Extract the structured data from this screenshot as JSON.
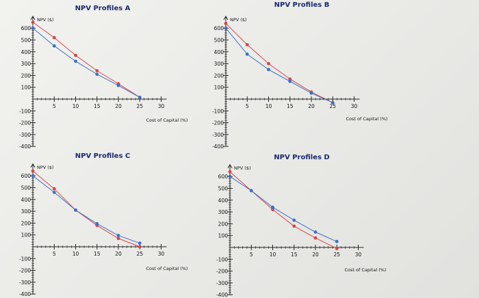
{
  "colors": {
    "series_a": "#d64545",
    "series_b": "#3d6fc9",
    "axis": "#222222",
    "title": "#1a2a6e"
  },
  "chart_data": [
    {
      "type": "line",
      "title": "NPV Profiles A",
      "ylabel": "NPV ($)",
      "xlabel": "Cost of Capital (%)",
      "xlim": [
        0,
        30
      ],
      "ylim": [
        -400,
        700
      ],
      "xticks": [
        5,
        10,
        15,
        20,
        25,
        30
      ],
      "yticks": [
        600,
        500,
        400,
        300,
        200,
        100,
        -100,
        -200,
        -300,
        -400
      ],
      "series": [
        {
          "values": [
            [
              0,
              650
            ],
            [
              5,
              520
            ],
            [
              10,
              370
            ],
            [
              15,
              240
            ],
            [
              20,
              130
            ],
            [
              25,
              15
            ]
          ]
        },
        {
          "values": [
            [
              0,
              600
            ],
            [
              5,
              450
            ],
            [
              10,
              320
            ],
            [
              15,
              210
            ],
            [
              20,
              115
            ],
            [
              25,
              15
            ]
          ]
        }
      ]
    },
    {
      "type": "line",
      "title": "NPV Profiles B",
      "ylabel": "NPV ($)",
      "xlabel": "Cost of Capital (%)",
      "xlim": [
        0,
        30
      ],
      "ylim": [
        -400,
        700
      ],
      "xticks": [
        5,
        10,
        15,
        20,
        25,
        30
      ],
      "yticks": [
        600,
        500,
        400,
        300,
        200,
        100,
        -100,
        -200,
        -300,
        -400
      ],
      "series": [
        {
          "values": [
            [
              0,
              640
            ],
            [
              5,
              460
            ],
            [
              10,
              300
            ],
            [
              15,
              170
            ],
            [
              20,
              60
            ],
            [
              25,
              -30
            ]
          ]
        },
        {
          "values": [
            [
              0,
              600
            ],
            [
              5,
              380
            ],
            [
              10,
              250
            ],
            [
              15,
              150
            ],
            [
              20,
              50
            ],
            [
              25,
              -30
            ]
          ]
        }
      ]
    },
    {
      "type": "line",
      "title": "NPV Profiles C",
      "ylabel": "NPV ($)",
      "xlabel": "Cost of Capital (%)",
      "xlim": [
        0,
        30
      ],
      "ylim": [
        -400,
        700
      ],
      "xticks": [
        5,
        10,
        15,
        20,
        25,
        30
      ],
      "yticks": [
        600,
        500,
        400,
        300,
        200,
        100,
        -100,
        -200,
        -300,
        -400
      ],
      "series": [
        {
          "values": [
            [
              0,
              640
            ],
            [
              5,
              490
            ],
            [
              10,
              310
            ],
            [
              15,
              180
            ],
            [
              20,
              70
            ],
            [
              25,
              0
            ]
          ]
        },
        {
          "values": [
            [
              0,
              600
            ],
            [
              5,
              460
            ],
            [
              10,
              310
            ],
            [
              15,
              195
            ],
            [
              20,
              95
            ],
            [
              25,
              30
            ]
          ]
        }
      ]
    },
    {
      "type": "line",
      "title": "NPV Profiles D",
      "ylabel": "NPV ($)",
      "xlabel": "Cost of Capital (%)",
      "xlim": [
        0,
        30
      ],
      "ylim": [
        -400,
        700
      ],
      "xticks": [
        5,
        10,
        15,
        20,
        25,
        30
      ],
      "yticks": [
        600,
        500,
        400,
        300,
        200,
        100,
        -100,
        -200,
        -300,
        -400
      ],
      "series": [
        {
          "values": [
            [
              0,
              640
            ],
            [
              5,
              480
            ],
            [
              10,
              320
            ],
            [
              15,
              180
            ],
            [
              20,
              80
            ],
            [
              25,
              -10
            ]
          ]
        },
        {
          "values": [
            [
              0,
              600
            ],
            [
              5,
              480
            ],
            [
              10,
              340
            ],
            [
              15,
              230
            ],
            [
              20,
              130
            ],
            [
              25,
              50
            ]
          ]
        }
      ]
    }
  ]
}
